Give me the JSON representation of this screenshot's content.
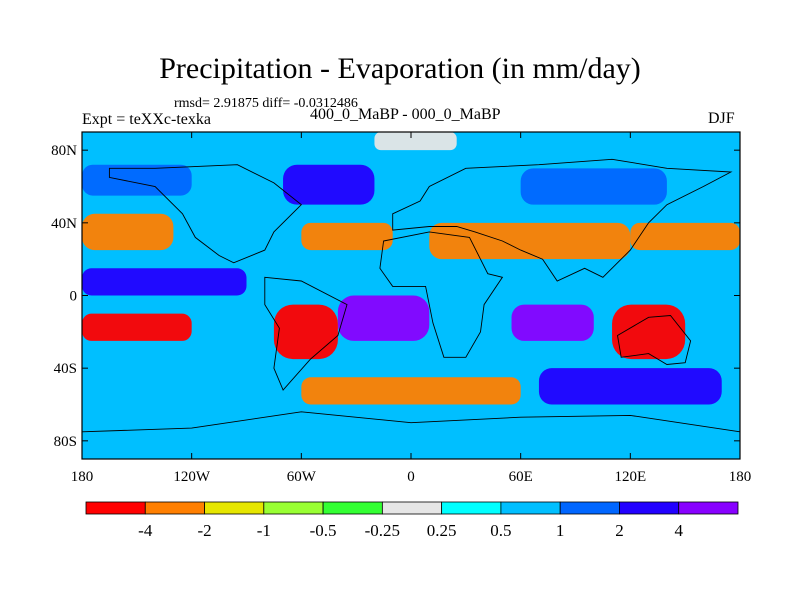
{
  "title": "Precipitation - Evaporation (in mm/day)",
  "stats_text": "rmsd= 2.91875 diff= -0.0312486",
  "experiment_label": "Expt = teXXc-texka",
  "subtitle": "400_0_MaBP - 000_0_MaBP",
  "season": "DJF",
  "chart_data": {
    "type": "heatmap",
    "title": "Precipitation - Evaporation (in mm/day)",
    "variable": "Precipitation - Evaporation",
    "units": "mm/day",
    "x_range": [
      -180,
      180
    ],
    "y_range": [
      -90,
      90
    ],
    "x_ticks": [
      {
        "value": -180,
        "label": "180"
      },
      {
        "value": -120,
        "label": "120W"
      },
      {
        "value": -60,
        "label": "60W"
      },
      {
        "value": 0,
        "label": "0"
      },
      {
        "value": 60,
        "label": "60E"
      },
      {
        "value": 120,
        "label": "120E"
      },
      {
        "value": 180,
        "label": "180"
      }
    ],
    "y_ticks": [
      {
        "value": 80,
        "label": "80N"
      },
      {
        "value": 40,
        "label": "40N"
      },
      {
        "value": 0,
        "label": "0"
      },
      {
        "value": -40,
        "label": "40S"
      },
      {
        "value": -80,
        "label": "80S"
      }
    ],
    "colorbar": {
      "levels": [
        -4,
        -2,
        -1,
        -0.5,
        -0.25,
        0.25,
        0.5,
        1,
        2,
        4
      ],
      "labels": [
        "-4",
        "-2",
        "-1",
        "-0.5",
        "-0.25",
        "0.25",
        "0.5",
        "1",
        "2",
        "4"
      ],
      "colors": [
        "#ff0000",
        "#ff7f00",
        "#e6e600",
        "#99ff33",
        "#33ff33",
        "#e6e6e6",
        "#00ffff",
        "#00bfff",
        "#0066ff",
        "#2200ff",
        "#8800ff"
      ],
      "orientation": "horizontal"
    },
    "regions": [
      {
        "name": "northern-band",
        "lon": [
          -180,
          180
        ],
        "lat": [
          75,
          90
        ],
        "color": "#00bfff"
      },
      {
        "name": "arctic-patch",
        "lon": [
          -20,
          25
        ],
        "lat": [
          80,
          90
        ],
        "color": "#e6e6e6"
      },
      {
        "name": "north-pacific-wet",
        "lon": [
          -180,
          -120
        ],
        "lat": [
          55,
          72
        ],
        "color": "#0066ff"
      },
      {
        "name": "north-atlantic-wet",
        "lon": [
          -70,
          -20
        ],
        "lat": [
          50,
          72
        ],
        "color": "#2200ff"
      },
      {
        "name": "siberia-wet",
        "lon": [
          60,
          140
        ],
        "lat": [
          50,
          70
        ],
        "color": "#0066ff"
      },
      {
        "name": "north-pacific-dry",
        "lon": [
          -180,
          -130
        ],
        "lat": [
          25,
          45
        ],
        "color": "#ff7f00"
      },
      {
        "name": "mid-atlantic-dry",
        "lon": [
          -60,
          -10
        ],
        "lat": [
          25,
          40
        ],
        "color": "#ff7f00"
      },
      {
        "name": "eurasia-dry",
        "lon": [
          10,
          120
        ],
        "lat": [
          20,
          40
        ],
        "color": "#ff7f00"
      },
      {
        "name": "west-pacific-dry",
        "lon": [
          120,
          180
        ],
        "lat": [
          25,
          40
        ],
        "color": "#ff7f00"
      },
      {
        "name": "tropical-pacific-wet",
        "lon": [
          -180,
          -90
        ],
        "lat": [
          0,
          15
        ],
        "color": "#2200ff"
      },
      {
        "name": "south-america-dry",
        "lon": [
          -75,
          -40
        ],
        "lat": [
          -35,
          -5
        ],
        "color": "#ff0000"
      },
      {
        "name": "south-atlantic-wet",
        "lon": [
          -40,
          10
        ],
        "lat": [
          -25,
          0
        ],
        "color": "#8800ff"
      },
      {
        "name": "indian-ocean-wet",
        "lon": [
          55,
          100
        ],
        "lat": [
          -25,
          -5
        ],
        "color": "#8800ff"
      },
      {
        "name": "australia-dry",
        "lon": [
          110,
          150
        ],
        "lat": [
          -35,
          -5
        ],
        "color": "#ff0000"
      },
      {
        "name": "south-pacific-dry",
        "lon": [
          -180,
          -120
        ],
        "lat": [
          -25,
          -10
        ],
        "color": "#ff0000"
      },
      {
        "name": "southern-ocean-dry",
        "lon": [
          -60,
          60
        ],
        "lat": [
          -60,
          -45
        ],
        "color": "#ff7f00"
      },
      {
        "name": "southern-ocean-wet",
        "lon": [
          70,
          170
        ],
        "lat": [
          -60,
          -40
        ],
        "color": "#2200ff"
      },
      {
        "name": "antarctic-band",
        "lon": [
          -180,
          180
        ],
        "lat": [
          -90,
          -72
        ],
        "color": "#00bfff"
      }
    ]
  }
}
